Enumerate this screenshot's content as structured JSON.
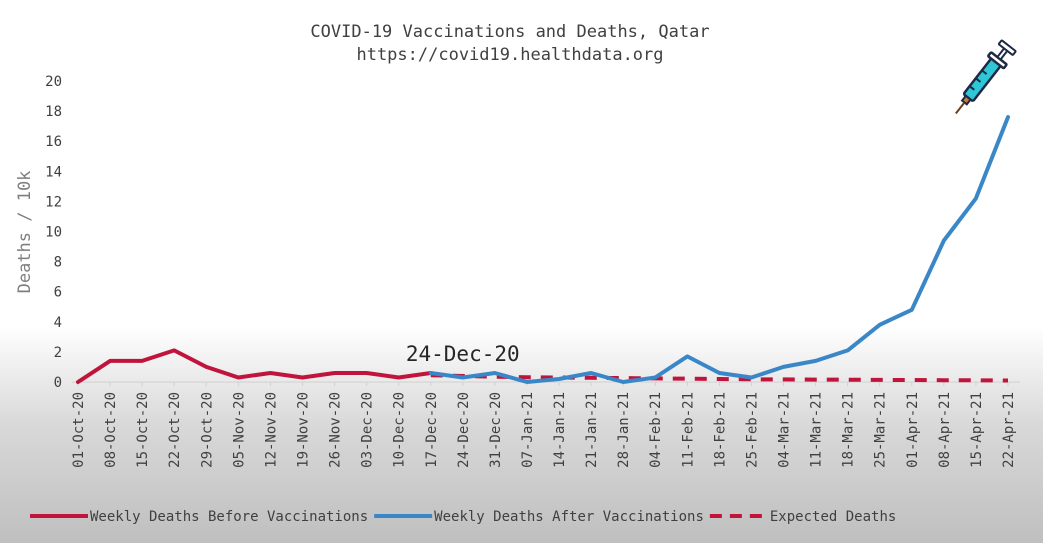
{
  "chart_data": {
    "type": "line",
    "title": "COVID-19 Vaccinations and Deaths, Qatar",
    "subtitle": "https://covid19.healthdata.org",
    "xlabel": "",
    "ylabel": "Deaths / 10k",
    "ylim": [
      0,
      20
    ],
    "yticks": [
      0,
      2,
      4,
      6,
      8,
      10,
      12,
      14,
      16,
      18,
      20
    ],
    "grid": false,
    "legend_position": "bottom",
    "categories": [
      "01-Oct-20",
      "08-Oct-20",
      "15-Oct-20",
      "22-Oct-20",
      "29-Oct-20",
      "05-Nov-20",
      "12-Nov-20",
      "19-Nov-20",
      "26-Nov-20",
      "03-Dec-20",
      "10-Dec-20",
      "17-Dec-20",
      "24-Dec-20",
      "31-Dec-20",
      "07-Jan-21",
      "14-Jan-21",
      "21-Jan-21",
      "28-Jan-21",
      "04-Feb-21",
      "11-Feb-21",
      "18-Feb-21",
      "25-Feb-21",
      "04-Mar-21",
      "11-Mar-21",
      "18-Mar-21",
      "25-Mar-21",
      "01-Apr-21",
      "08-Apr-21",
      "15-Apr-21",
      "22-Apr-21"
    ],
    "series": [
      {
        "name": "Weekly Deaths Before Vaccinations",
        "color": "#c0143c",
        "style": "solid",
        "values": [
          0,
          1.4,
          1.4,
          2.1,
          1.0,
          0.3,
          0.6,
          0.3,
          0.6,
          0.6,
          0.3,
          0.6,
          null,
          null,
          null,
          null,
          null,
          null,
          null,
          null,
          null,
          null,
          null,
          null,
          null,
          null,
          null,
          null,
          null,
          null
        ]
      },
      {
        "name": "Weekly Deaths After Vaccinations",
        "color": "#3a87c8",
        "style": "solid",
        "values": [
          null,
          null,
          null,
          null,
          null,
          null,
          null,
          null,
          null,
          null,
          null,
          0.6,
          0.3,
          0.6,
          0.0,
          0.2,
          0.6,
          0.0,
          0.3,
          1.7,
          0.6,
          0.3,
          1.0,
          1.4,
          2.1,
          3.8,
          4.8,
          9.4,
          12.2,
          17.6
        ]
      },
      {
        "name": "Expected Deaths",
        "color": "#c0143c",
        "style": "dashed",
        "values": [
          null,
          null,
          null,
          null,
          null,
          null,
          null,
          null,
          null,
          null,
          null,
          0.45,
          0.4,
          0.35,
          0.32,
          0.3,
          0.28,
          0.26,
          0.24,
          0.22,
          0.2,
          0.18,
          0.17,
          0.16,
          0.15,
          0.14,
          0.13,
          0.12,
          0.11,
          0.1
        ]
      }
    ],
    "annotations": [
      {
        "text": "24-Dec-20",
        "x": "17-Dec-20",
        "y": 1.2
      }
    ],
    "icons": [
      {
        "name": "syringe-icon",
        "x": "22-Apr-21",
        "y": 17.6
      }
    ]
  }
}
